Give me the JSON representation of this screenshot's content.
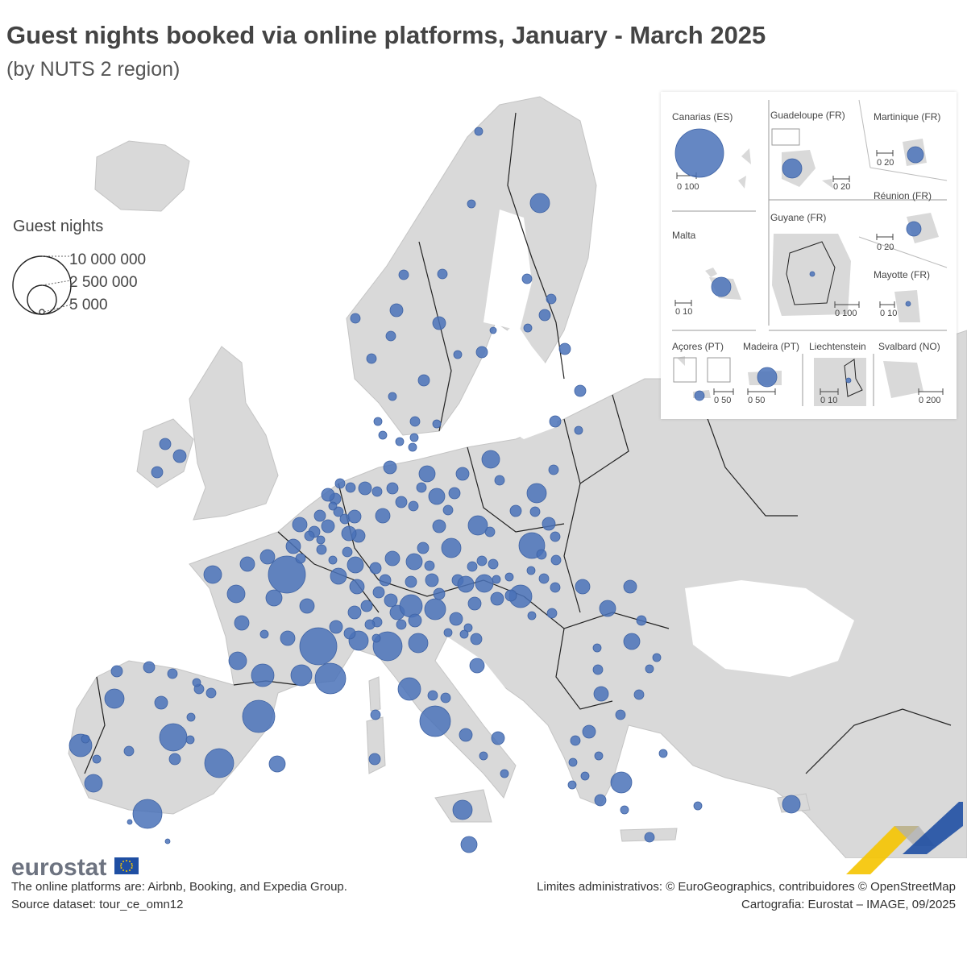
{
  "title": "Guest nights booked via online platforms, January - March 2025",
  "subtitle": "(by NUTS 2 region)",
  "legend": {
    "title": "Guest nights",
    "labels": [
      "10 000 000",
      "2 500 000",
      "5 000"
    ],
    "values": [
      10000000,
      2500000,
      5000
    ]
  },
  "insets": {
    "canarias": {
      "label": "Canarias (ES)",
      "scale": "0  100"
    },
    "guadeloupe": {
      "label": "Guadeloupe (FR)",
      "scale": "0  20"
    },
    "martinique": {
      "label": "Martinique (FR)",
      "scale": "0  20"
    },
    "reunion": {
      "label": "Réunion (FR)",
      "scale": "0  20"
    },
    "malta": {
      "label": "Malta",
      "scale": "0  10"
    },
    "guyane": {
      "label": "Guyane (FR)",
      "scale": "0  100"
    },
    "mayotte": {
      "label": "Mayotte (FR)",
      "scale": "0 10"
    },
    "acores": {
      "label": "Açores (PT)",
      "scale": "0  50"
    },
    "madeira": {
      "label": "Madeira (PT)",
      "scale": "0  50"
    },
    "liechtenstein": {
      "label": "Liechtenstein",
      "scale": "0  10"
    },
    "svalbard": {
      "label": "Svalbard (NO)",
      "scale": "0  200"
    }
  },
  "colors": {
    "bubble": "#4a72b8",
    "land": "#d9d9d9",
    "sea": "#ffffff",
    "border": "#222222"
  },
  "brand": "eurostat",
  "footer": {
    "note1": "The online platforms are: Airbnb, Booking, and Expedia Group.",
    "note2": "Source dataset: tour_ce_omn12",
    "credit1": "Limites administrativos: © EuroGeographics, contribuidores © OpenStreetMap",
    "credit2": "Cartografia: Eurostat – IMAGE, 09/2025"
  }
}
